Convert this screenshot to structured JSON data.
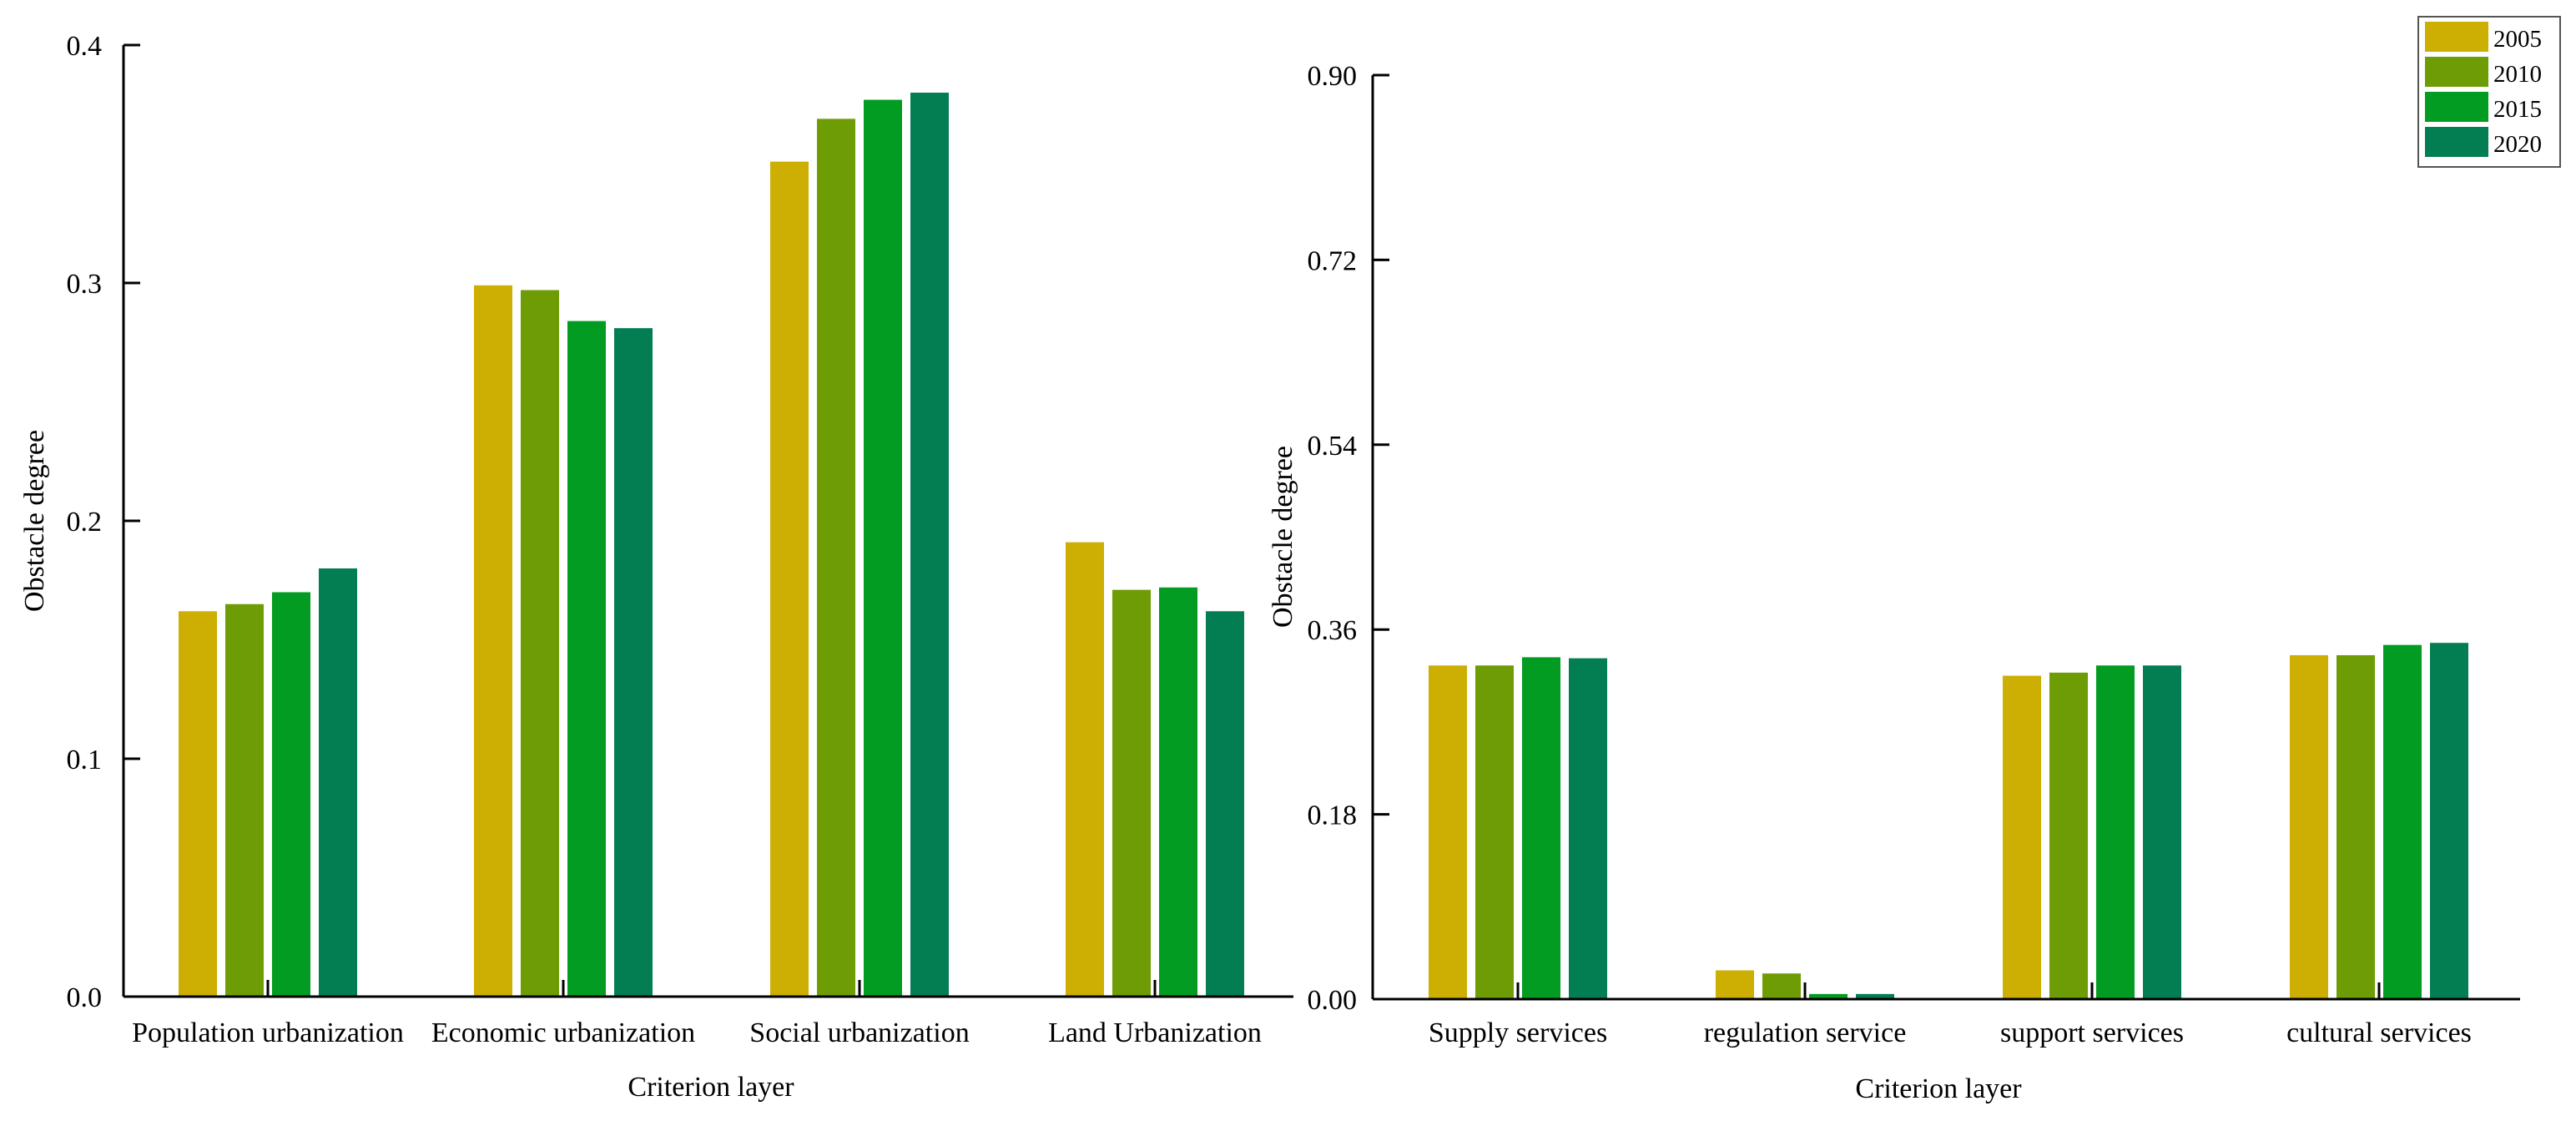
{
  "chart_data": [
    {
      "type": "bar",
      "title": "",
      "xlabel": "Criterion layer",
      "ylabel": "Obstacle degree",
      "ylim": [
        0,
        0.4
      ],
      "yticks": [
        "0.0",
        "0.1",
        "0.2",
        "0.3",
        "0.4"
      ],
      "categories": [
        "Population urbanization",
        "Economic urbanization",
        "Social urbanization",
        "Land Urbanization"
      ],
      "series": [
        {
          "name": "2005",
          "values": [
            0.162,
            0.299,
            0.351,
            0.191
          ]
        },
        {
          "name": "2010",
          "values": [
            0.165,
            0.297,
            0.369,
            0.171
          ]
        },
        {
          "name": "2015",
          "values": [
            0.17,
            0.284,
            0.377,
            0.172
          ]
        },
        {
          "name": "2020",
          "values": [
            0.18,
            0.281,
            0.38,
            0.162
          ]
        }
      ]
    },
    {
      "type": "bar",
      "title": "",
      "xlabel": "Criterion layer",
      "ylabel": "Obstacle degree",
      "ylim": [
        0,
        0.9
      ],
      "yticks": [
        "0.00",
        "0.18",
        "0.36",
        "0.54",
        "0.72",
        "0.90"
      ],
      "categories": [
        "Supply services",
        "regulation service",
        "support services",
        "cultural services"
      ],
      "series": [
        {
          "name": "2005",
          "values": [
            0.325,
            0.028,
            0.315,
            0.335
          ]
        },
        {
          "name": "2010",
          "values": [
            0.325,
            0.025,
            0.318,
            0.335
          ]
        },
        {
          "name": "2015",
          "values": [
            0.333,
            0.005,
            0.325,
            0.345
          ]
        },
        {
          "name": "2020",
          "values": [
            0.332,
            0.005,
            0.325,
            0.347
          ]
        }
      ]
    }
  ],
  "legend": {
    "position": "top-right",
    "items": [
      "2005",
      "2010",
      "2015",
      "2020"
    ]
  },
  "colors": [
    "#CDAE02",
    "#6E9C04",
    "#029C22",
    "#027E52"
  ]
}
